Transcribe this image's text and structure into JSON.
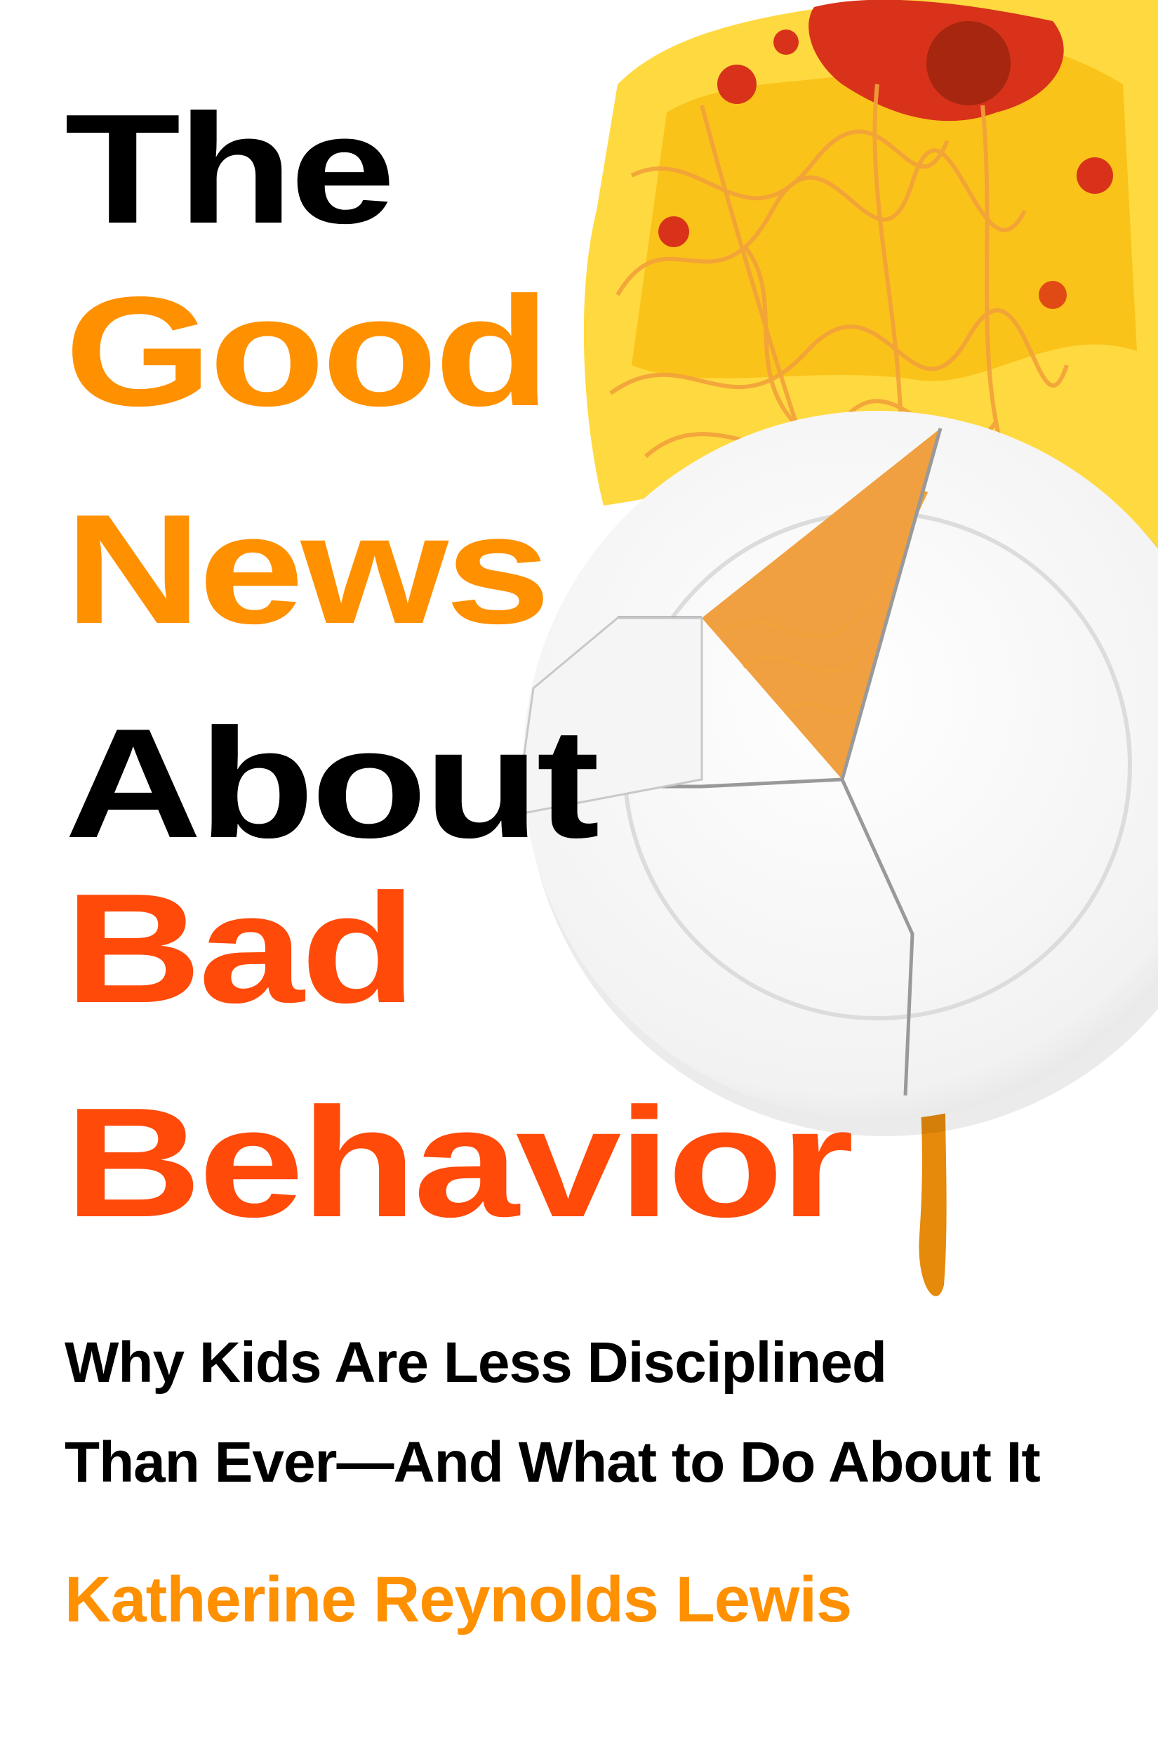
{
  "cover": {
    "title_lines": [
      "The",
      "Good",
      "News",
      "About",
      "Bad",
      "Behavior"
    ],
    "subtitle_lines": [
      "Why Kids Are Less Disciplined",
      "Than Ever—And What to Do About It"
    ],
    "author": "Katherine Reynolds Lewis",
    "artwork": "broken-plate-with-spaghetti-image"
  },
  "colors": {
    "black": "#000000",
    "orange": "#FF9000",
    "red_orange": "#FF4A0A",
    "sauce": "#D8321A",
    "yellow_smear": "#FFD21E",
    "background": "#FFFFFF"
  }
}
